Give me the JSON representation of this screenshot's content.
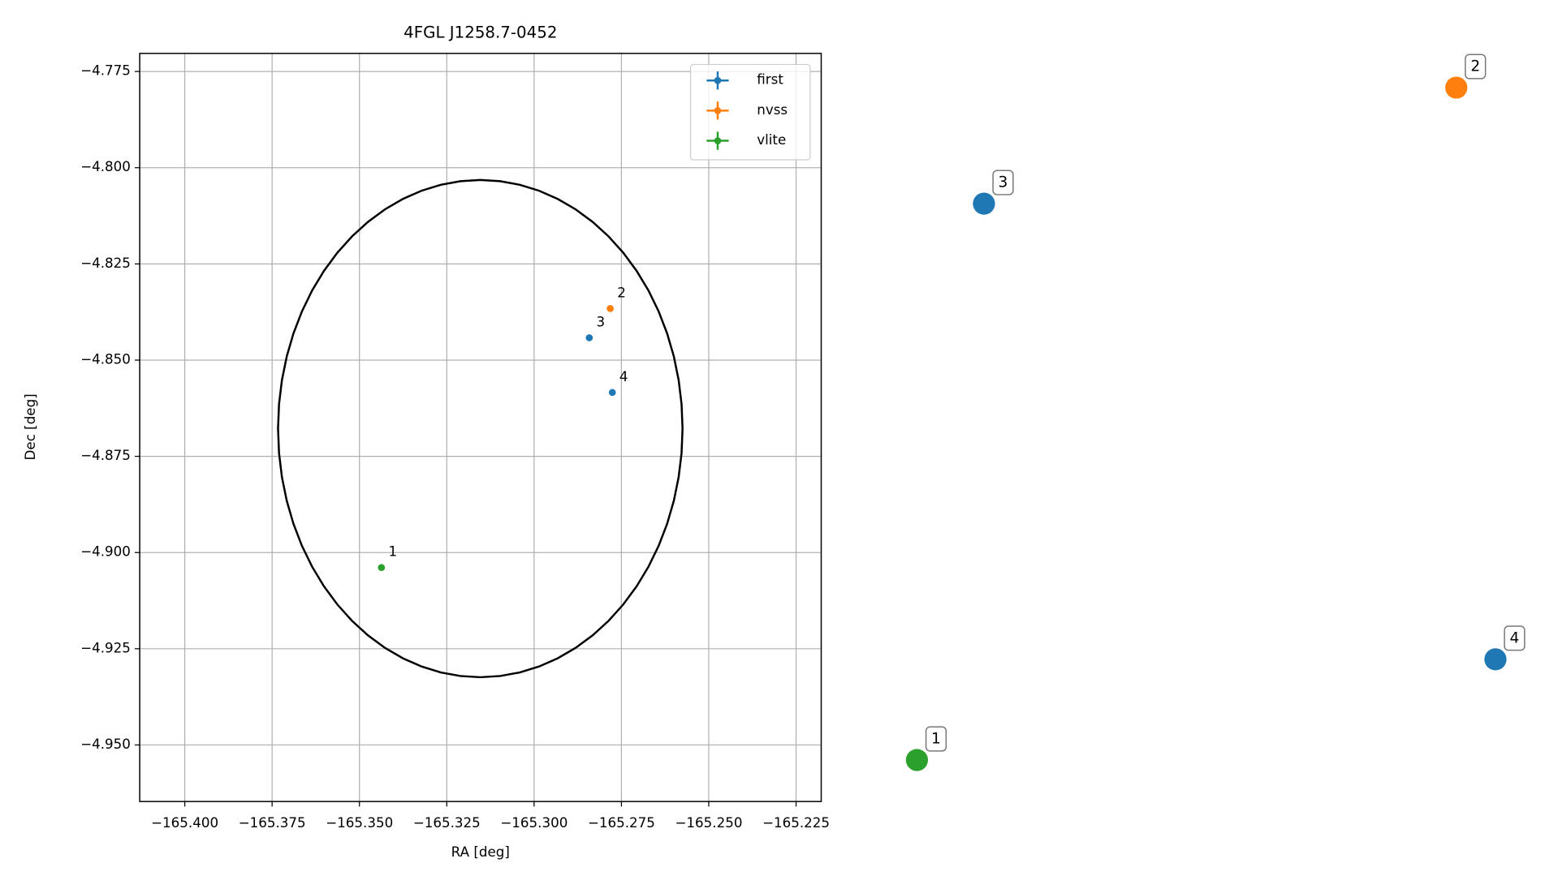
{
  "chart_data": [
    {
      "type": "scatter",
      "title": "4FGL J1258.7-0452",
      "xlabel": "RA [deg]",
      "ylabel": "Dec [deg]",
      "xlim": [
        -165.4129,
        -165.2178
      ],
      "ylim": [
        -4.9647,
        -4.7703
      ],
      "xticks": [
        {
          "value": -165.4,
          "label": "−165.400"
        },
        {
          "value": -165.375,
          "label": "−165.375"
        },
        {
          "value": -165.35,
          "label": "−165.350"
        },
        {
          "value": -165.325,
          "label": "−165.325"
        },
        {
          "value": -165.3,
          "label": "−165.300"
        },
        {
          "value": -165.275,
          "label": "−165.275"
        },
        {
          "value": -165.25,
          "label": "−165.250"
        },
        {
          "value": -165.225,
          "label": "−165.225"
        }
      ],
      "yticks": [
        {
          "value": -4.775,
          "label": "−4.775"
        },
        {
          "value": -4.8,
          "label": "−4.800"
        },
        {
          "value": -4.825,
          "label": "−4.825"
        },
        {
          "value": -4.85,
          "label": "−4.850"
        },
        {
          "value": -4.875,
          "label": "−4.875"
        },
        {
          "value": -4.9,
          "label": "−4.900"
        },
        {
          "value": -4.925,
          "label": "−4.925"
        },
        {
          "value": -4.95,
          "label": "−4.950"
        }
      ],
      "grid": true,
      "legend": "upper right",
      "ellipse": {
        "center": [
          -165.3154,
          -4.8678
        ],
        "radii": [
          0.0579,
          0.0646
        ],
        "color": "#000000"
      },
      "series": [
        {
          "name": "first",
          "color": "#1f77b4",
          "x": [
            -165.2842,
            -165.2776
          ],
          "values": [
            -4.8442,
            -4.8584
          ],
          "labels": [
            "3",
            "4"
          ]
        },
        {
          "name": "nvss",
          "color": "#ff7f0e",
          "x": [
            -165.2782
          ],
          "values": [
            -4.8366
          ],
          "labels": [
            "2"
          ]
        },
        {
          "name": "vlite",
          "color": "#2ca02c",
          "x": [
            -165.3437
          ],
          "values": [
            -4.9039
          ],
          "labels": [
            "1"
          ]
        }
      ]
    },
    {
      "type": "scatter",
      "xlim": [
        0,
        1
      ],
      "ylim": [
        0,
        1
      ],
      "series": [
        {
          "color": "#2ca02c",
          "x": [
            0.064
          ],
          "values": [
            0.057
          ],
          "labels": [
            "1"
          ]
        },
        {
          "color": "#ff7f0e",
          "x": [
            0.877
          ],
          "values": [
            0.938
          ],
          "labels": [
            "2"
          ]
        },
        {
          "color": "#1f77b4",
          "x": [
            0.165,
            0.936
          ],
          "values": [
            0.786,
            0.189
          ],
          "labels": [
            "3",
            "4"
          ]
        }
      ]
    }
  ]
}
